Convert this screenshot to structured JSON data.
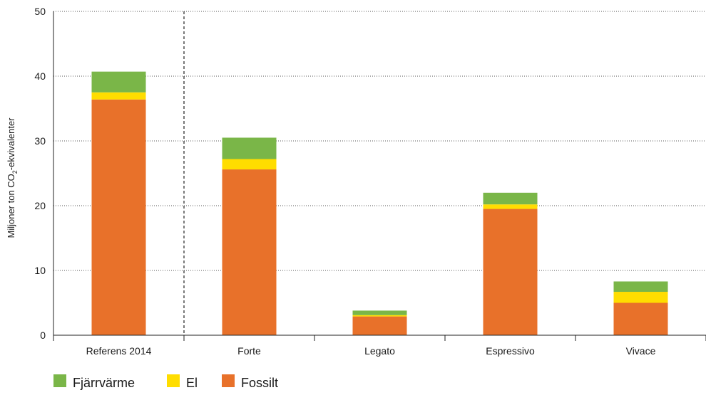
{
  "chart_data": {
    "type": "bar",
    "stacked": true,
    "ylabel_prefix": "Miljoner ton CO",
    "ylabel_sub": "2",
    "ylabel_suffix": "-ekvivalenter",
    "ylim": [
      0,
      50
    ],
    "yticks": [
      "0",
      "10",
      "20",
      "30",
      "40",
      "50"
    ],
    "categories": [
      "Referens 2014",
      "Forte",
      "Legato",
      "Espressivo",
      "Vivace"
    ],
    "series": [
      {
        "name": "Fossilt",
        "color": "#E8712A",
        "values": [
          36.4,
          25.6,
          2.9,
          19.5,
          5.0
        ]
      },
      {
        "name": "El",
        "color": "#FFDD00",
        "values": [
          1.1,
          1.6,
          0.2,
          0.7,
          1.7
        ]
      },
      {
        "name": "Fjärrvärme",
        "color": "#7AB648",
        "values": [
          3.2,
          3.3,
          0.7,
          1.8,
          1.6
        ]
      }
    ],
    "legend": {
      "placement": "bottom-left",
      "order": [
        "Fjärrvärme",
        "El",
        "Fossilt"
      ]
    },
    "grid": "dotted horizontal",
    "separator_after_category": "Referens 2014"
  }
}
